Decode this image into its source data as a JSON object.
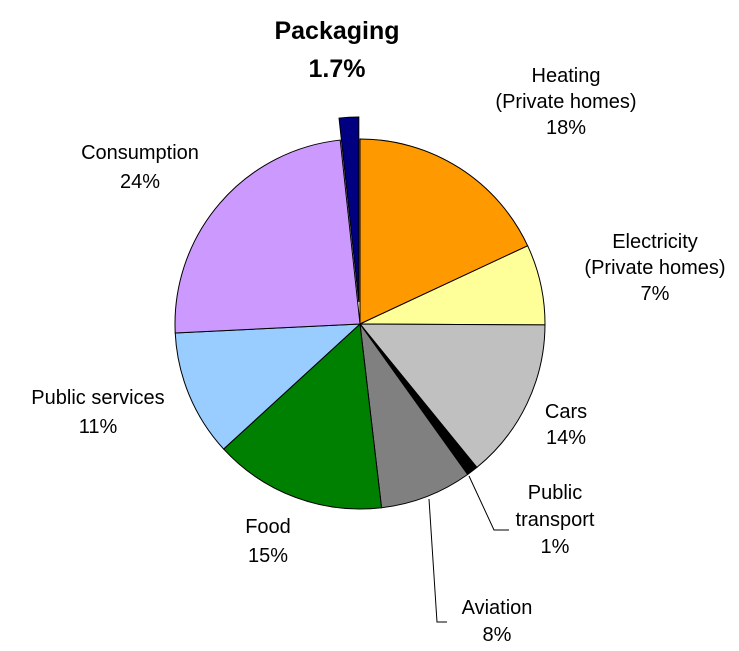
{
  "chart_data": {
    "type": "pie",
    "title": "",
    "unit": "%",
    "slices": [
      {
        "label": "Heating (Private homes)",
        "lines": [
          "Heating",
          "(Private homes)"
        ],
        "value": 18,
        "value_label": "18%",
        "color": "#ff9900",
        "exploded": false,
        "emphasis": false
      },
      {
        "label": "Electricity (Private homes)",
        "lines": [
          "Electricity",
          "(Private homes)"
        ],
        "value": 7,
        "value_label": "7%",
        "color": "#ffff99",
        "exploded": false,
        "emphasis": false
      },
      {
        "label": "Cars",
        "lines": [
          "Cars"
        ],
        "value": 14,
        "value_label": "14%",
        "color": "#c0c0c0",
        "exploded": false,
        "emphasis": false
      },
      {
        "label": "Public transport",
        "lines": [
          "Public",
          "transport"
        ],
        "value": 1,
        "value_label": "1%",
        "color": "#000000",
        "exploded": false,
        "emphasis": false
      },
      {
        "label": "Aviation",
        "lines": [
          "Aviation"
        ],
        "value": 8,
        "value_label": "8%",
        "color": "#808080",
        "exploded": false,
        "emphasis": false
      },
      {
        "label": "Food",
        "lines": [
          "Food"
        ],
        "value": 15,
        "value_label": "15%",
        "color": "#008000",
        "exploded": false,
        "emphasis": false
      },
      {
        "label": "Public services",
        "lines": [
          "Public services"
        ],
        "value": 11,
        "value_label": "11%",
        "color": "#99ccff",
        "exploded": false,
        "emphasis": false
      },
      {
        "label": "Consumption",
        "lines": [
          "Consumption"
        ],
        "value": 24,
        "value_label": "24%",
        "color": "#cc99ff",
        "exploded": false,
        "emphasis": false
      },
      {
        "label": "Packaging",
        "lines": [
          "Packaging"
        ],
        "value": 1.7,
        "value_label": "1.7%",
        "color": "#000080",
        "exploded": true,
        "emphasis": true
      }
    ]
  }
}
